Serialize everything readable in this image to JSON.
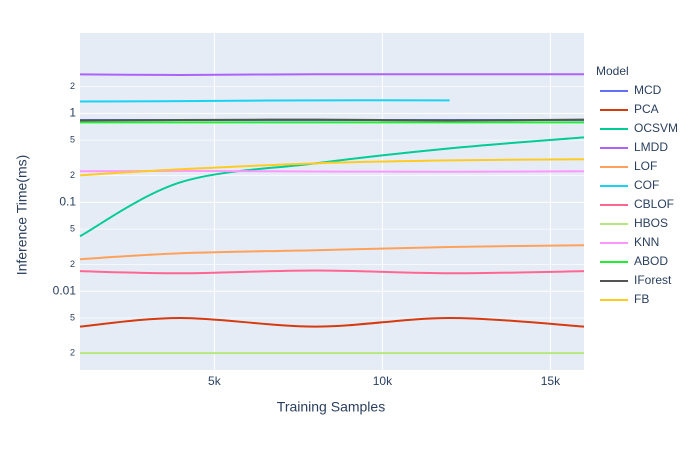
{
  "chart_data": {
    "type": "line",
    "x_label": "Training Samples",
    "y_label": "Inference Time(ms)",
    "legend_title": "Model",
    "x": [
      1000,
      4000,
      8000,
      12000,
      16000
    ],
    "xlim": [
      1000,
      16000
    ],
    "xticks": [
      {
        "value": 5000,
        "label": "5k"
      },
      {
        "value": 10000,
        "label": "10k"
      },
      {
        "value": 15000,
        "label": "15k"
      }
    ],
    "ylim": [
      0.0013,
      8
    ],
    "log_y": true,
    "grid": true,
    "yticks": [
      {
        "value": 0.002,
        "label": "2"
      },
      {
        "value": 0.005,
        "label": "5"
      },
      0.01,
      {
        "value": 0.02,
        "label": "2"
      },
      {
        "value": 0.05,
        "label": "5"
      },
      0.1,
      {
        "value": 0.2,
        "label": "2"
      },
      {
        "value": 0.5,
        "label": "5"
      },
      1,
      2
    ],
    "series": [
      {
        "name": "MCD",
        "color": "#636efa",
        "values": [
          0.84,
          0.84,
          0.84,
          0.84,
          0.84
        ]
      },
      {
        "name": "PCA",
        "color": "#d63a10",
        "values": [
          0.004,
          0.005,
          0.004,
          0.005,
          0.004
        ]
      },
      {
        "name": "OCSVM",
        "color": "#00cc96",
        "values": [
          0.0415,
          0.168,
          0.274,
          0.404,
          0.537
        ]
      },
      {
        "name": "LMDD",
        "color": "#ab63fa",
        "values": [
          2.74,
          2.7,
          2.75,
          2.75,
          2.75
        ]
      },
      {
        "name": "LOF",
        "color": "#ffa15a",
        "values": [
          0.0229,
          0.0267,
          0.0289,
          0.0314,
          0.0329
        ]
      },
      {
        "name": "COF",
        "color": "#19d3f3",
        "values": [
          1.36,
          1.37,
          1.4,
          1.4,
          null
        ]
      },
      {
        "name": "CBLOF",
        "color": "#ff6692",
        "values": [
          0.0168,
          0.0159,
          0.0171,
          0.0159,
          0.0168
        ]
      },
      {
        "name": "HBOS",
        "color": "#b6e880",
        "values": [
          0.00201,
          0.00201,
          0.00201,
          0.00201,
          0.00201
        ]
      },
      {
        "name": "KNN",
        "color": "#ff97ff",
        "values": [
          0.223,
          0.225,
          0.222,
          0.22,
          0.223
        ]
      },
      {
        "name": "ABOD",
        "color": "#22ee33",
        "values": [
          0.79,
          0.79,
          0.79,
          0.79,
          0.79
        ]
      },
      {
        "name": "IForest",
        "color": "#555555",
        "values": [
          0.83,
          0.84,
          0.85,
          0.83,
          0.85
        ]
      },
      {
        "name": "FB",
        "color": "#fecb22",
        "values": [
          0.201,
          0.235,
          0.274,
          0.296,
          0.304
        ]
      }
    ]
  }
}
